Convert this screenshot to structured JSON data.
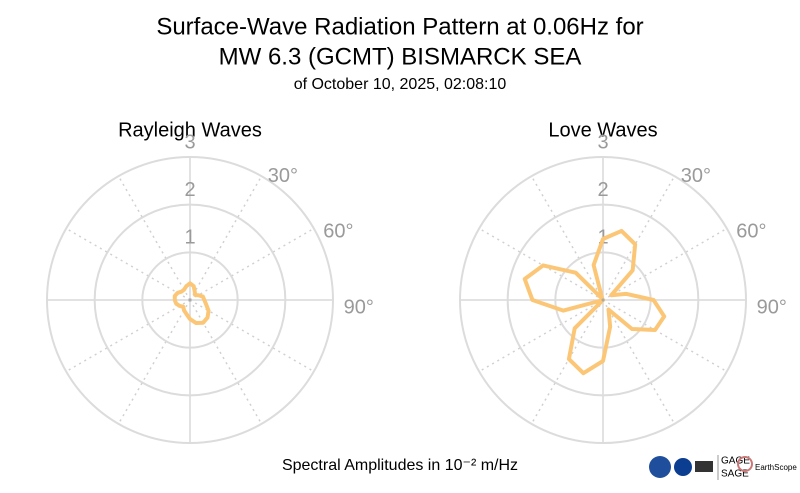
{
  "header": {
    "title_lines": [
      "Surface-Wave Radiation Pattern at 0.06Hz for",
      "MW 6.3 (GCMT) BISMARCK SEA"
    ],
    "subtitle": "of October 10, 2025, 02:08:10"
  },
  "footer": {
    "text": "Spectral Amplitudes in 10⁻² m/Hz"
  },
  "logos": {
    "gage": "GAGE",
    "sage": "SAGE",
    "earthscope": "EarthScope"
  },
  "chart_data": [
    {
      "type": "polar",
      "title": "Rayleigh Waves",
      "color": "#fcc677",
      "theta": [
        0,
        15,
        30,
        45,
        60,
        75,
        90,
        105,
        120,
        135,
        150,
        165,
        180,
        195,
        210,
        225,
        240,
        255,
        270,
        285,
        300,
        315,
        330,
        345
      ],
      "r": [
        0.35,
        0.3,
        0.2,
        0.15,
        0.2,
        0.28,
        0.3,
        0.35,
        0.45,
        0.52,
        0.55,
        0.5,
        0.4,
        0.3,
        0.25,
        0.2,
        0.25,
        0.3,
        0.32,
        0.33,
        0.3,
        0.25,
        0.25,
        0.3
      ],
      "rlim": [
        0,
        3
      ],
      "rticks": [
        1,
        2,
        3
      ],
      "thetaticks": [
        {
          "value": 30,
          "label": "30°"
        },
        {
          "value": 60,
          "label": "60°"
        },
        {
          "value": 90,
          "label": "90°"
        }
      ],
      "thetagrid": [
        0,
        30,
        60,
        90,
        120,
        150,
        180,
        210,
        240,
        270,
        300,
        330
      ]
    },
    {
      "type": "polar",
      "title": "Love Waves",
      "color": "#fcc677",
      "theta": [
        0,
        15,
        30,
        45,
        60,
        75,
        90,
        105,
        120,
        135,
        150,
        165,
        180,
        195,
        210,
        225,
        240,
        255,
        270,
        285,
        300,
        315,
        330,
        345
      ],
      "r": [
        1.28,
        1.5,
        1.35,
        0.88,
        0.2,
        0.5,
        1.06,
        1.33,
        1.26,
        0.86,
        0.23,
        0.58,
        1.28,
        1.59,
        1.43,
        0.84,
        0,
        0.86,
        1.48,
        1.7,
        1.45,
        0.81,
        0.03,
        0.76
      ],
      "rlim": [
        0,
        3
      ],
      "rticks": [
        1,
        2,
        3
      ],
      "thetaticks": [
        {
          "value": 30,
          "label": "30°"
        },
        {
          "value": 60,
          "label": "60°"
        },
        {
          "value": 90,
          "label": "90°"
        }
      ],
      "thetagrid": [
        0,
        30,
        60,
        90,
        120,
        150,
        180,
        210,
        240,
        270,
        300,
        330
      ]
    }
  ]
}
